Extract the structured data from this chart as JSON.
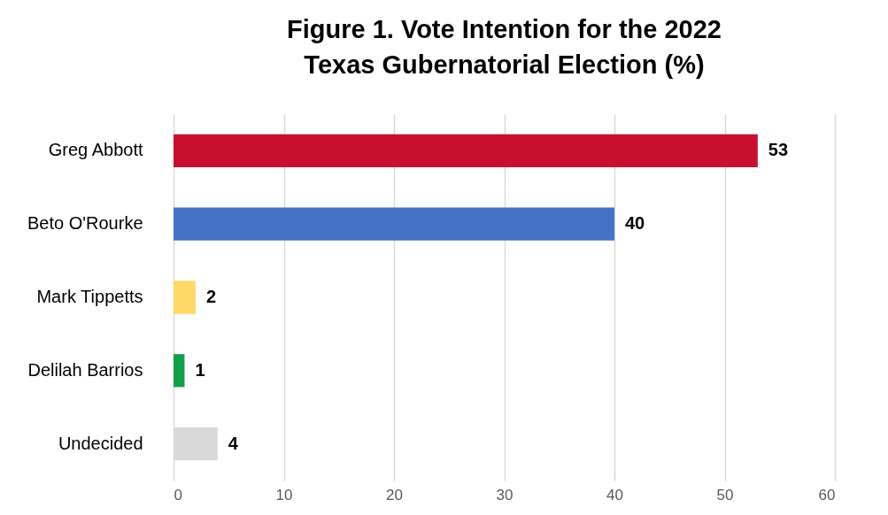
{
  "chart_data": {
    "type": "bar",
    "orientation": "horizontal",
    "title": "Figure 1.  Vote Intention for the 2022\nTexas Gubernatorial Election (%)",
    "categories": [
      "Greg Abbott",
      "Beto O'Rourke",
      "Mark Tippetts",
      "Delilah Barrios",
      "Undecided"
    ],
    "values": [
      53,
      40,
      2,
      1,
      4
    ],
    "colors": [
      "#c8102e",
      "#4472c4",
      "#ffd966",
      "#12a04a",
      "#d9d9d9"
    ],
    "xlim": [
      0,
      60
    ],
    "xticks": [
      0,
      10,
      20,
      30,
      40,
      50,
      60
    ],
    "grid": "x",
    "data_labels": true
  }
}
